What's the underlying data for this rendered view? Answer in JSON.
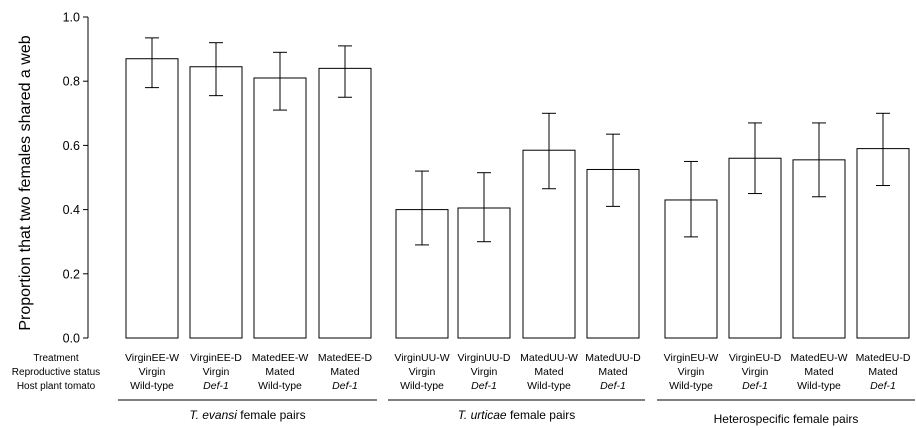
{
  "chart_data": {
    "type": "bar",
    "title": "",
    "xlabel": "",
    "ylabel": "Proportion that two females shared a web",
    "ylim": [
      0,
      1
    ],
    "yticks": [
      "0.0",
      "0.2",
      "0.4",
      "0.6",
      "0.8",
      "1.0"
    ],
    "grid": false,
    "bar_fill": "#ffffff",
    "bar_stroke": "#000000",
    "row_headers": [
      "Treatment",
      "Reproductive status",
      "Host plant tomato"
    ],
    "categories": [
      "VirginEE-W",
      "VirginEE-D",
      "MatedEE-W",
      "MatedEE-D",
      "VirginUU-W",
      "VirginUU-D",
      "MatedUU-W",
      "MatedUU-D",
      "VirginEU-W",
      "VirginEU-D",
      "MatedEU-W",
      "MatedEU-D"
    ],
    "reproductive_status": [
      "Virgin",
      "Virgin",
      "Mated",
      "Mated",
      "Virgin",
      "Virgin",
      "Mated",
      "Mated",
      "Virgin",
      "Virgin",
      "Mated",
      "Mated"
    ],
    "host_plant": [
      "Wild-type",
      "Def-1",
      "Wild-type",
      "Def-1",
      "Wild-type",
      "Def-1",
      "Wild-type",
      "Def-1",
      "Wild-type",
      "Def-1",
      "Wild-type",
      "Def-1"
    ],
    "values": [
      0.87,
      0.845,
      0.81,
      0.84,
      0.4,
      0.405,
      0.585,
      0.525,
      0.43,
      0.56,
      0.555,
      0.59
    ],
    "error_low": [
      0.78,
      0.755,
      0.71,
      0.75,
      0.29,
      0.3,
      0.465,
      0.41,
      0.315,
      0.45,
      0.44,
      0.475
    ],
    "error_high": [
      0.935,
      0.92,
      0.89,
      0.91,
      0.52,
      0.515,
      0.7,
      0.635,
      0.55,
      0.67,
      0.67,
      0.7
    ],
    "groups": [
      {
        "prefix": "T. evansi",
        "suffix": " female pairs",
        "italic_prefix": true
      },
      {
        "prefix": "T. urticae",
        "suffix": " female pairs",
        "italic_prefix": true
      },
      {
        "prefix": "",
        "suffix": "Heterospecific female pairs",
        "italic_prefix": false
      }
    ]
  }
}
